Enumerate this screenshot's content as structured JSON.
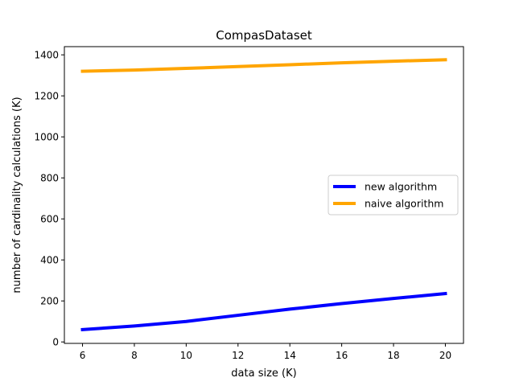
{
  "chart_data": {
    "type": "line",
    "title": "CompasDataset",
    "xlabel": "data size (K)",
    "ylabel": "number of cardinality calculations (K)",
    "xlim": [
      5.3,
      20.7
    ],
    "ylim": [
      -7,
      1440
    ],
    "xticks": [
      6,
      8,
      10,
      12,
      14,
      16,
      18,
      20
    ],
    "yticks": [
      0,
      200,
      400,
      600,
      800,
      1000,
      1200,
      1400
    ],
    "grid": false,
    "legend_position": "center-right",
    "series": [
      {
        "name": "new algorithm",
        "color": "#0000ff",
        "x": [
          6,
          8,
          10,
          12,
          14,
          16,
          18,
          20
        ],
        "y": [
          60,
          78,
          100,
          130,
          160,
          187,
          212,
          236
        ]
      },
      {
        "name": "naive algorithm",
        "color": "#ffa500",
        "x": [
          6,
          8,
          10,
          12,
          14,
          16,
          18,
          20
        ],
        "y": [
          1320,
          1326,
          1334,
          1343,
          1352,
          1361,
          1369,
          1376
        ]
      }
    ]
  }
}
